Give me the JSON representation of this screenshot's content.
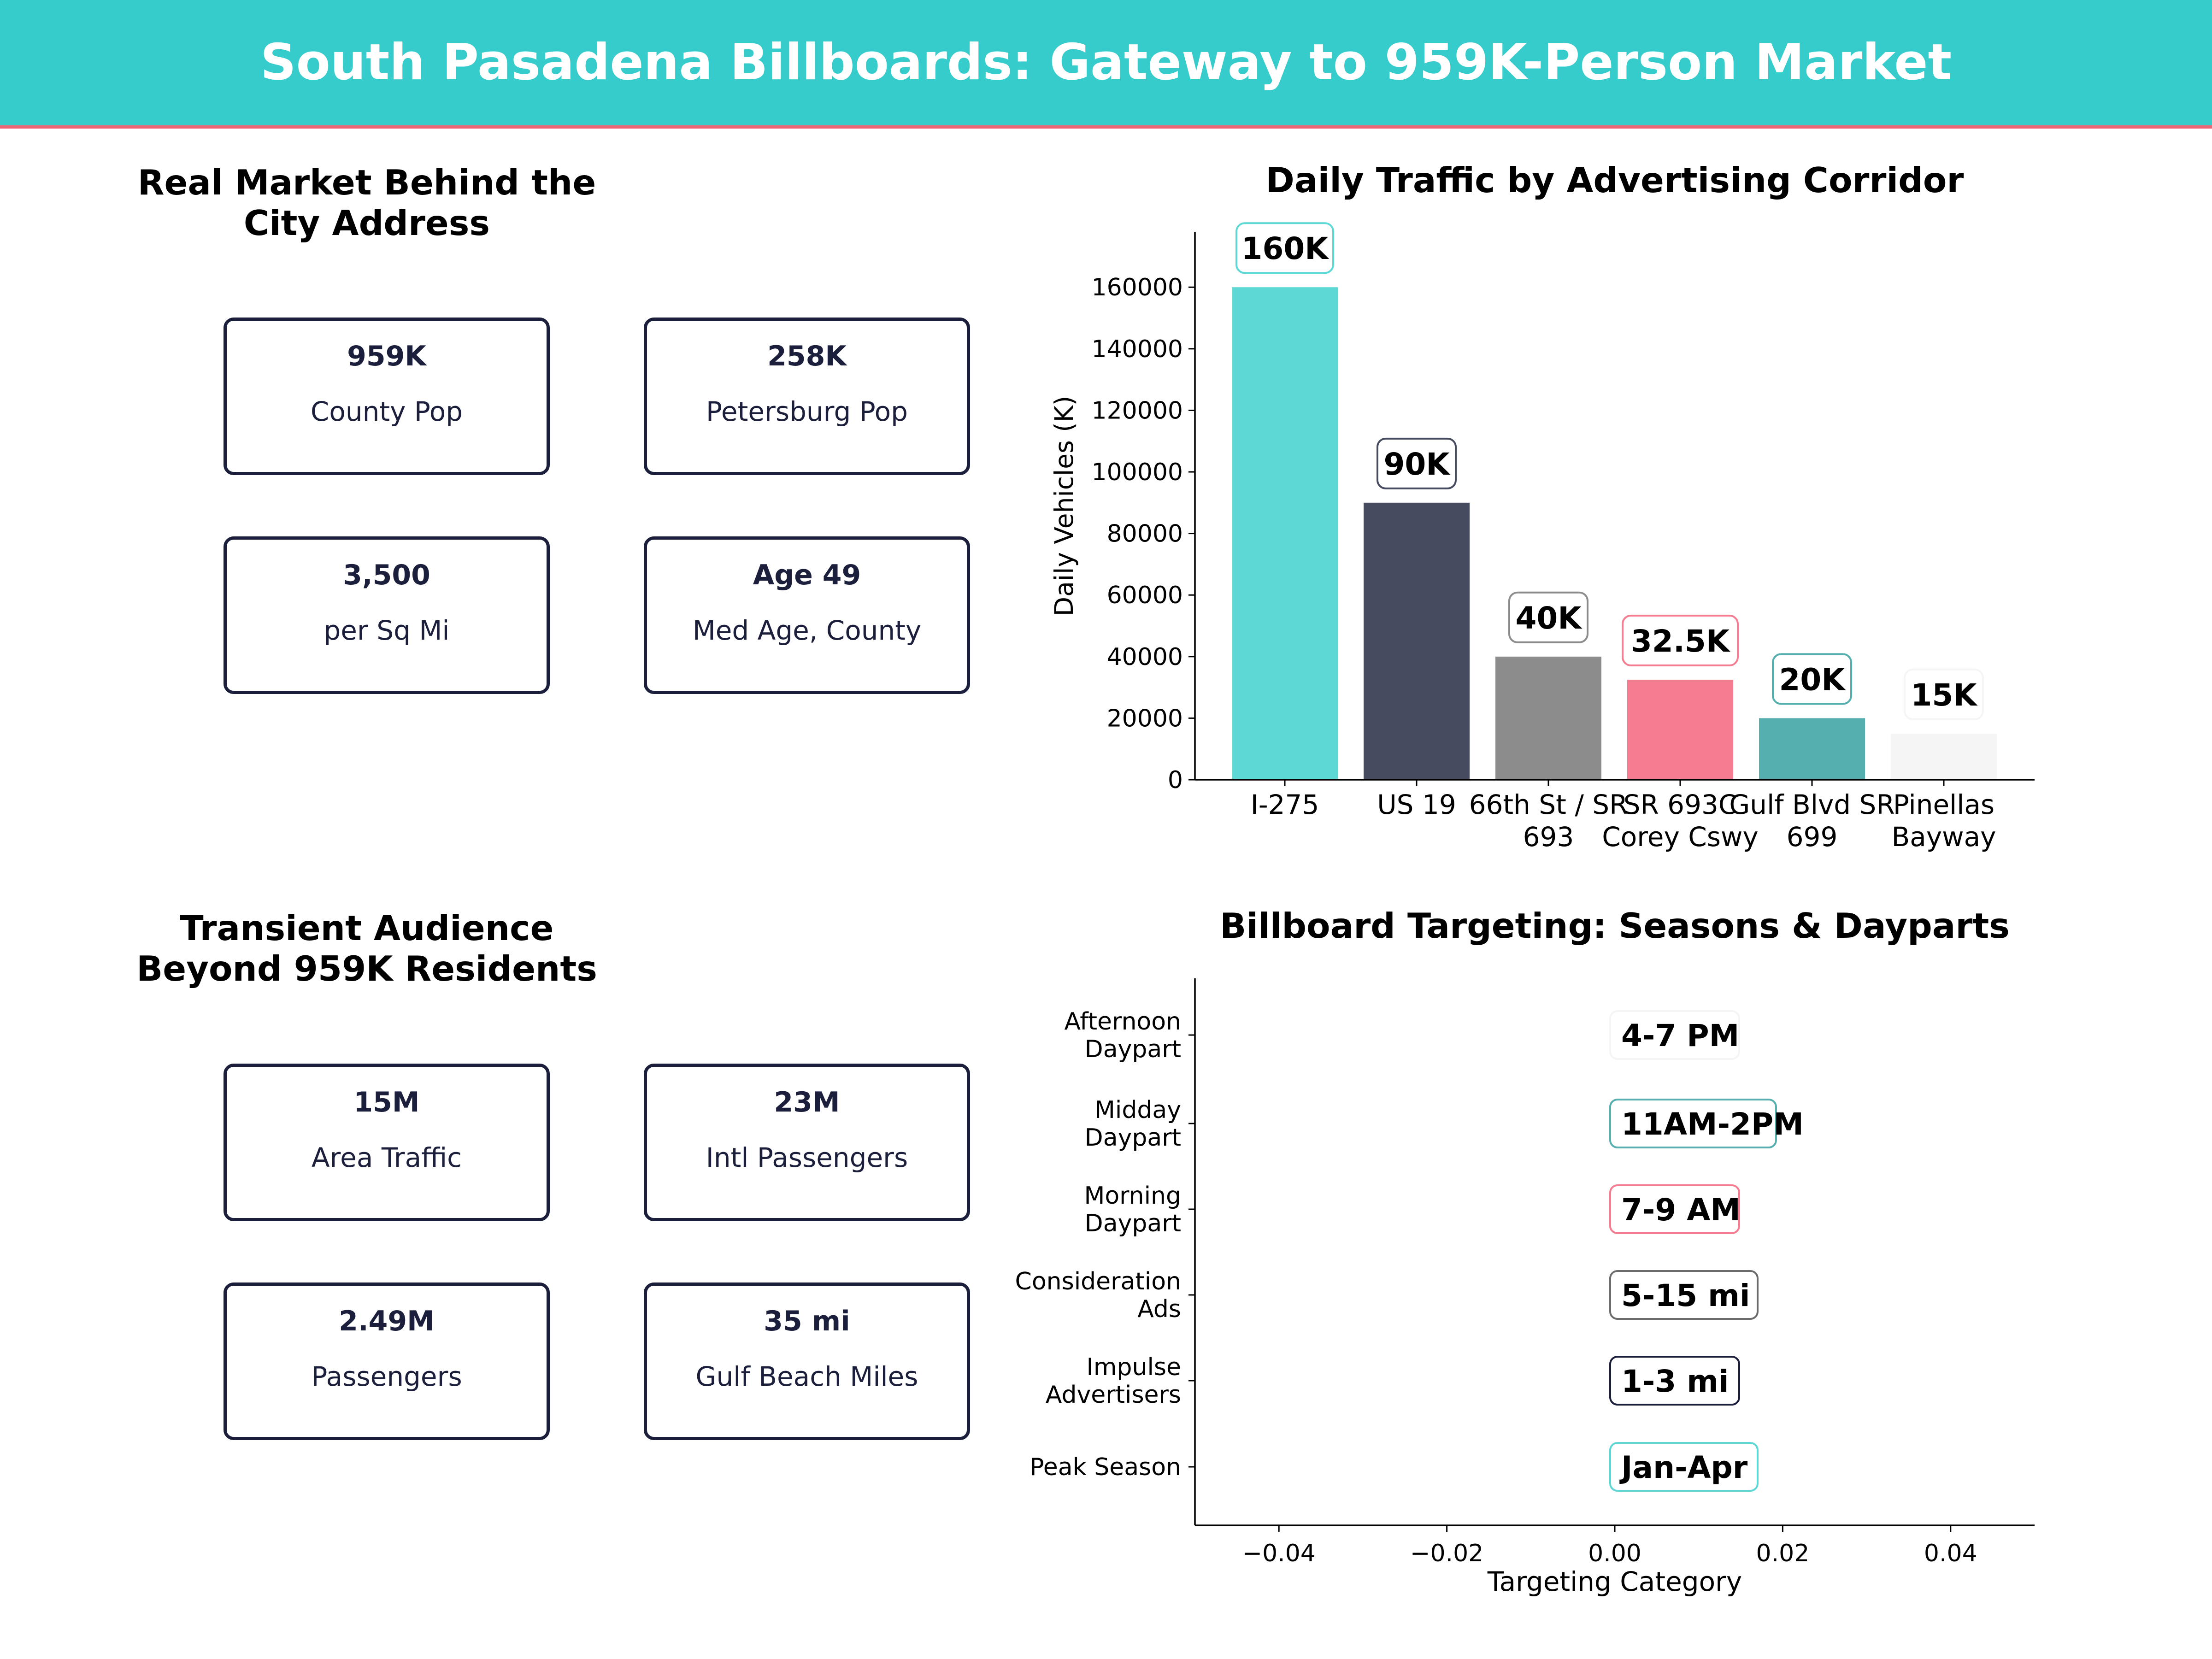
{
  "title": "South Pasadena Billboards: Gateway to 959K-Person Market",
  "colors": {
    "header": "#36cccc",
    "accent_line": "#f06577",
    "teal": "#36cccc",
    "navy": "#1b1f3b",
    "gray": "#6b6b6b",
    "pink": "#e85a72"
  },
  "market_panel": {
    "title": "Real Market Behind the City Address",
    "cards": [
      {
        "value": "959K",
        "label": "County Pop",
        "style": "teal"
      },
      {
        "value": "258K",
        "label": "Petersburg Pop",
        "style": "navy"
      },
      {
        "value": "3,500",
        "label": "per Sq Mi",
        "style": "gray"
      },
      {
        "value": "Age 49",
        "label": "Med Age, County",
        "style": "pink"
      }
    ]
  },
  "transient_panel": {
    "title": "Transient Audience Beyond 959K Residents",
    "cards": [
      {
        "value": "15M",
        "label": "Area Traffic",
        "style": "teal"
      },
      {
        "value": "23M",
        "label": "Intl Passengers",
        "style": "navy"
      },
      {
        "value": "2.49M",
        "label": "Passengers",
        "style": "gray"
      },
      {
        "value": "35 mi",
        "label": "Gulf Beach Miles",
        "style": "pink"
      }
    ]
  },
  "chart_data": [
    {
      "type": "bar",
      "title": "Daily Traffic by Advertising Corridor",
      "xlabel": "",
      "ylabel": "Daily Vehicles (K)",
      "categories": [
        "I-275",
        "US 19",
        "66th St / SR\n693",
        "SR 693C\nCorey Cswy",
        "Gulf Blvd SR\n699",
        "Pinellas\nBayway"
      ],
      "values": [
        160000,
        90000,
        40000,
        32500,
        20000,
        15000
      ],
      "data_labels": [
        "160K",
        "90K",
        "40K",
        "32.5K",
        "20K",
        "15K"
      ],
      "bar_colors": [
        "#5dd8d5",
        "#474b60",
        "#8c8c8c",
        "#f57d91",
        "#55afae",
        "#f5f5f5"
      ],
      "label_border_colors": [
        "#5dd8d5",
        "#474b60",
        "#8c8c8c",
        "#f57d91",
        "#55afae",
        "#f5f5f5"
      ],
      "ylim": [
        0,
        178000
      ],
      "yticks": [
        0,
        20000,
        40000,
        60000,
        80000,
        100000,
        120000,
        140000,
        160000
      ],
      "grid": false
    },
    {
      "type": "scatter",
      "title": "Billboard Targeting: Seasons & Dayparts",
      "xlabel": "Targeting Category",
      "ylabel": "",
      "categories": [
        "Peak Season",
        "Impulse\nAdvertisers",
        "Consideration\nAds",
        "Morning\nDaypart",
        "Midday\nDaypart",
        "Afternoon\nDaypart"
      ],
      "x": [
        0,
        0,
        0,
        0,
        0,
        0
      ],
      "data_labels": [
        "Jan-Apr",
        "1-3 mi",
        "5-15 mi",
        "7-9 AM",
        "11AM-2PM",
        "4-7 PM"
      ],
      "label_border_colors": [
        "#5dd8d5",
        "#1b1f3b",
        "#6b6b6b",
        "#f57d91",
        "#55afae",
        "#f5f5f5"
      ],
      "xlim": [
        -0.05,
        0.05
      ],
      "xticks": [
        -0.04,
        -0.02,
        0.0,
        0.02,
        0.04
      ],
      "xtick_labels": [
        "−0.04",
        "−0.02",
        "0.00",
        "0.02",
        "0.04"
      ],
      "grid": false
    }
  ]
}
